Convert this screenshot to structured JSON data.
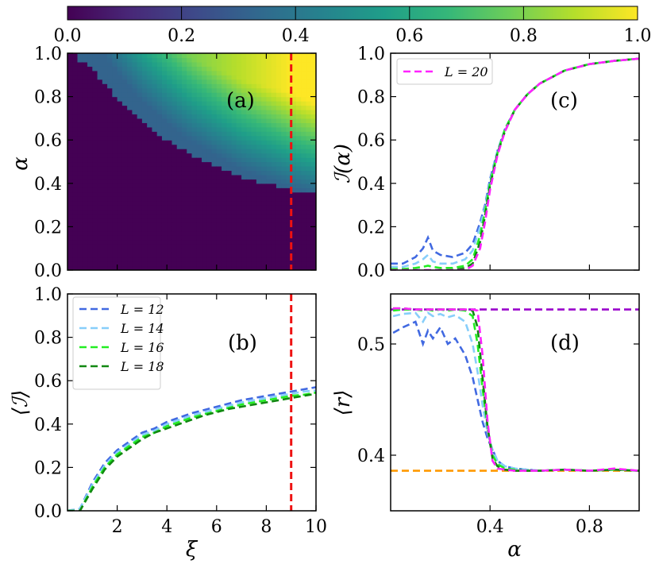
{
  "colors": {
    "L12": "#4169E1",
    "L14": "#87CEFA",
    "L16": "#22EE22",
    "L18": "#118811",
    "L20": "#FF22FF",
    "marker": "#EE1111",
    "goe": "#9900CC",
    "poisson": "#FF9900",
    "viridis": [
      "#440154",
      "#482878",
      "#3e4989",
      "#31688e",
      "#26828e",
      "#1f9e89",
      "#35b779",
      "#6ece58",
      "#b5de2b",
      "#fde725"
    ]
  },
  "colorbar": {
    "range": [
      0,
      1
    ],
    "ticks": [
      "0.0",
      "0.2",
      "0.4",
      "0.6",
      "0.8",
      "1.0"
    ]
  },
  "chart_data": [
    {
      "panel": "a",
      "type": "heatmap",
      "label": "(a)",
      "xlim": [
        0,
        10
      ],
      "ylim": [
        0,
        1
      ],
      "ylabel": "α",
      "yticks": [
        "0.0",
        "0.2",
        "0.4",
        "0.6",
        "0.8",
        "1.0"
      ],
      "boundary": {
        "xi": [
          0.4,
          1.0,
          2.0,
          3.0,
          4.0,
          5.0,
          6.0,
          7.0,
          8.0,
          9.0,
          10.0
        ],
        "alpha_c": [
          1.0,
          0.96,
          0.82,
          0.71,
          0.63,
          0.56,
          0.51,
          0.46,
          0.43,
          0.4,
          0.38
        ]
      },
      "vline": 9.0
    },
    {
      "panel": "b",
      "type": "line",
      "label": "(b)",
      "xlim": [
        0,
        10
      ],
      "ylim": [
        0,
        1
      ],
      "xlabel": "ξ",
      "ylabel": "⟨ℐ⟩",
      "xticks": [
        "2",
        "4",
        "6",
        "8",
        "10"
      ],
      "yticks": [
        "0.0",
        "0.2",
        "0.4",
        "0.6",
        "0.8",
        "1.0"
      ],
      "x": [
        0,
        0.5,
        1,
        1.5,
        2,
        2.5,
        3,
        3.5,
        4,
        4.5,
        5,
        5.5,
        6,
        6.5,
        7,
        7.5,
        8,
        8.5,
        9,
        9.5,
        10
      ],
      "series": [
        {
          "name": "L = 12",
          "values": [
            0.0,
            0.01,
            0.13,
            0.22,
            0.28,
            0.32,
            0.36,
            0.38,
            0.41,
            0.43,
            0.45,
            0.465,
            0.48,
            0.495,
            0.51,
            0.52,
            0.53,
            0.54,
            0.55,
            0.56,
            0.57
          ]
        },
        {
          "name": "L = 14",
          "values": [
            0.0,
            0.01,
            0.12,
            0.21,
            0.27,
            0.31,
            0.35,
            0.37,
            0.4,
            0.42,
            0.44,
            0.455,
            0.47,
            0.485,
            0.5,
            0.51,
            0.52,
            0.53,
            0.54,
            0.55,
            0.555
          ]
        },
        {
          "name": "L = 16",
          "values": [
            0.0,
            0.0,
            0.11,
            0.2,
            0.26,
            0.3,
            0.34,
            0.36,
            0.39,
            0.41,
            0.43,
            0.445,
            0.46,
            0.475,
            0.49,
            0.5,
            0.51,
            0.52,
            0.53,
            0.535,
            0.545
          ]
        },
        {
          "name": "L = 18",
          "values": [
            0.0,
            0.0,
            0.1,
            0.19,
            0.25,
            0.29,
            0.33,
            0.36,
            0.38,
            0.4,
            0.42,
            0.44,
            0.455,
            0.47,
            0.48,
            0.49,
            0.5,
            0.51,
            0.52,
            0.53,
            0.54
          ]
        }
      ],
      "vline": 9.0
    },
    {
      "panel": "c",
      "type": "line",
      "label": "(c)",
      "xlim": [
        0,
        1
      ],
      "ylim": [
        0,
        1
      ],
      "ylabel": "ℐ(α)",
      "yticks": [
        "0.0",
        "0.2",
        "0.4",
        "0.6",
        "0.8",
        "1.0"
      ],
      "x": [
        0,
        0.05,
        0.1,
        0.13,
        0.15,
        0.17,
        0.2,
        0.25,
        0.3,
        0.33,
        0.36,
        0.38,
        0.4,
        0.43,
        0.46,
        0.5,
        0.55,
        0.6,
        0.65,
        0.7,
        0.8,
        0.9,
        1.0
      ],
      "series": [
        {
          "name": "L = 12",
          "values": [
            0.03,
            0.03,
            0.06,
            0.1,
            0.15,
            0.09,
            0.07,
            0.06,
            0.08,
            0.12,
            0.22,
            0.3,
            0.42,
            0.55,
            0.65,
            0.74,
            0.81,
            0.86,
            0.89,
            0.92,
            0.95,
            0.965,
            0.975
          ]
        },
        {
          "name": "L = 14",
          "values": [
            0.015,
            0.015,
            0.03,
            0.05,
            0.07,
            0.04,
            0.03,
            0.03,
            0.05,
            0.09,
            0.2,
            0.29,
            0.41,
            0.55,
            0.65,
            0.74,
            0.81,
            0.86,
            0.89,
            0.92,
            0.95,
            0.965,
            0.975
          ]
        },
        {
          "name": "L = 16",
          "values": [
            0.005,
            0.005,
            0.01,
            0.015,
            0.02,
            0.015,
            0.01,
            0.01,
            0.02,
            0.05,
            0.16,
            0.27,
            0.4,
            0.54,
            0.65,
            0.74,
            0.81,
            0.86,
            0.89,
            0.92,
            0.95,
            0.965,
            0.975
          ]
        },
        {
          "name": "L = 18",
          "values": [
            0,
            0,
            0,
            0,
            0,
            0,
            0,
            0,
            0.01,
            0.03,
            0.13,
            0.25,
            0.39,
            0.54,
            0.64,
            0.74,
            0.81,
            0.86,
            0.89,
            0.92,
            0.95,
            0.965,
            0.975
          ]
        },
        {
          "name": "L = 20",
          "values": [
            0,
            0,
            0,
            0,
            0,
            0,
            0,
            0,
            0,
            0.02,
            0.1,
            0.22,
            0.37,
            0.53,
            0.64,
            0.74,
            0.81,
            0.86,
            0.89,
            0.92,
            0.95,
            0.965,
            0.975
          ]
        }
      ],
      "legend": [
        "L = 20"
      ]
    },
    {
      "panel": "d",
      "type": "line",
      "label": "(d)",
      "xlim": [
        0,
        1
      ],
      "ylim": [
        0.35,
        0.545
      ],
      "xlabel": "α",
      "ylabel": "⟨r⟩",
      "xticks": [
        "0.4",
        "0.8"
      ],
      "xtick_values": [
        0.4,
        0.8
      ],
      "yticks": [
        "0.4",
        "0.5"
      ],
      "ytick_values": [
        0.4,
        0.5
      ],
      "hlines": [
        {
          "y": 0.531,
          "role": "goe"
        },
        {
          "y": 0.386,
          "role": "poisson"
        }
      ],
      "x": [
        0.01,
        0.05,
        0.1,
        0.13,
        0.15,
        0.17,
        0.2,
        0.23,
        0.26,
        0.3,
        0.33,
        0.35,
        0.37,
        0.39,
        0.41,
        0.43,
        0.46,
        0.5,
        0.55,
        0.6,
        0.7,
        0.8,
        0.9,
        1.0
      ],
      "series": [
        {
          "name": "L = 12",
          "values": [
            0.51,
            0.515,
            0.52,
            0.5,
            0.512,
            0.505,
            0.515,
            0.5,
            0.505,
            0.49,
            0.47,
            0.45,
            0.43,
            0.415,
            0.405,
            0.395,
            0.39,
            0.388,
            0.387,
            0.386,
            0.387,
            0.386,
            0.387,
            0.386
          ]
        },
        {
          "name": "L = 14",
          "values": [
            0.525,
            0.527,
            0.528,
            0.52,
            0.528,
            0.525,
            0.527,
            0.524,
            0.526,
            0.52,
            0.5,
            0.475,
            0.445,
            0.42,
            0.405,
            0.395,
            0.39,
            0.388,
            0.387,
            0.386,
            0.387,
            0.386,
            0.387,
            0.386
          ]
        },
        {
          "name": "L = 16",
          "values": [
            0.53,
            0.531,
            0.531,
            0.53,
            0.531,
            0.53,
            0.531,
            0.53,
            0.531,
            0.53,
            0.525,
            0.5,
            0.46,
            0.425,
            0.4,
            0.392,
            0.388,
            0.387,
            0.386,
            0.386,
            0.387,
            0.386,
            0.387,
            0.386
          ]
        },
        {
          "name": "L = 18",
          "values": [
            0.532,
            0.532,
            0.531,
            0.531,
            0.531,
            0.531,
            0.531,
            0.531,
            0.531,
            0.531,
            0.53,
            0.515,
            0.47,
            0.425,
            0.397,
            0.39,
            0.387,
            0.386,
            0.386,
            0.386,
            0.387,
            0.386,
            0.387,
            0.386
          ]
        },
        {
          "name": "L = 20",
          "values": [
            0.532,
            0.532,
            0.531,
            0.531,
            0.531,
            0.531,
            0.531,
            0.531,
            0.531,
            0.531,
            0.531,
            0.53,
            0.49,
            0.43,
            0.395,
            0.388,
            0.387,
            0.386,
            0.386,
            0.386,
            0.387,
            0.386,
            0.388,
            0.386
          ]
        }
      ]
    }
  ]
}
